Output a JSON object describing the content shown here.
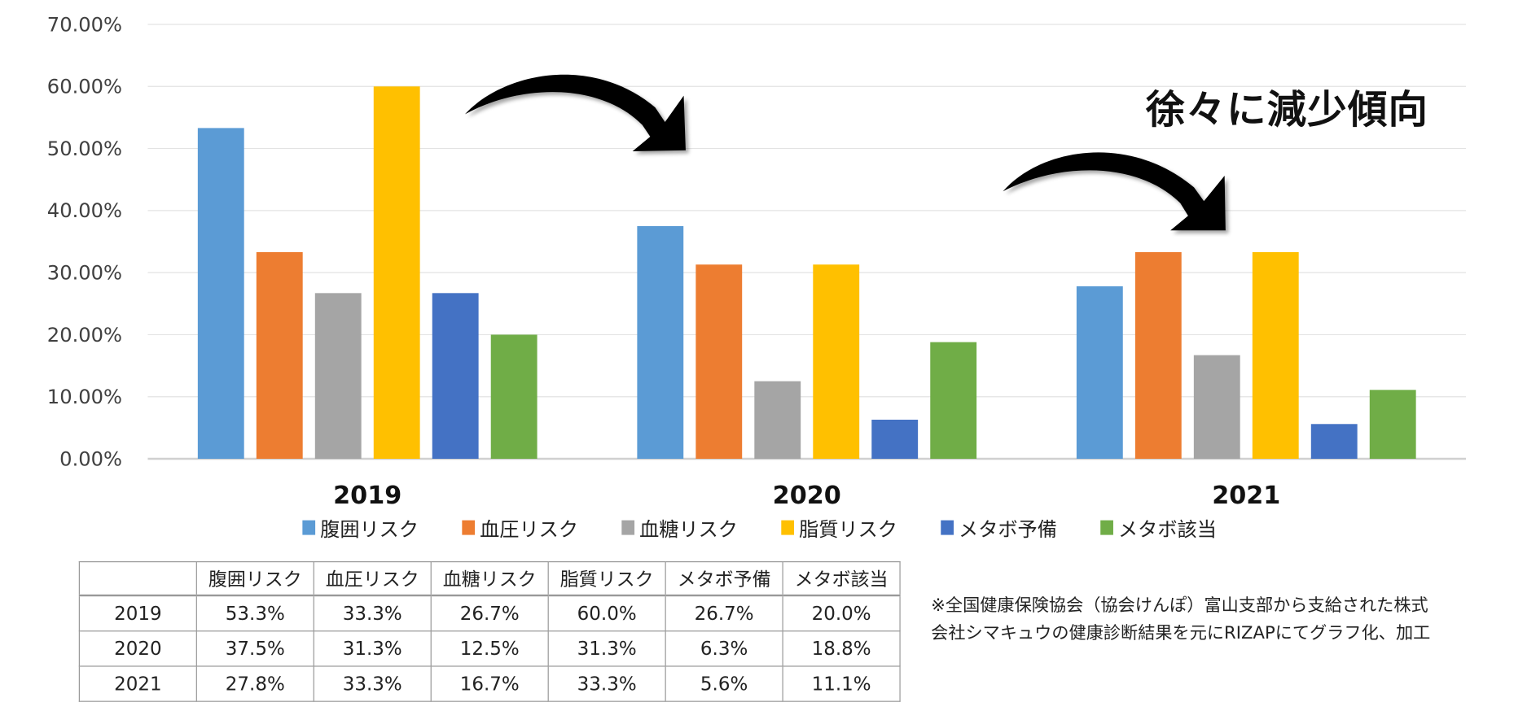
{
  "chart_data": {
    "type": "bar",
    "categories": [
      "2019",
      "2020",
      "2021"
    ],
    "series": [
      {
        "name": "腹囲リスク",
        "color": "#5B9BD5",
        "values": [
          53.3,
          37.5,
          27.8
        ]
      },
      {
        "name": "血圧リスク",
        "color": "#ED7D31",
        "values": [
          33.3,
          31.3,
          33.3
        ]
      },
      {
        "name": "血糖リスク",
        "color": "#A5A5A5",
        "values": [
          26.7,
          12.5,
          16.7
        ]
      },
      {
        "name": "脂質リスク",
        "color": "#FFC000",
        "values": [
          60.0,
          31.3,
          33.3
        ]
      },
      {
        "name": "メタボ予備",
        "color": "#4472C4",
        "values": [
          26.7,
          6.3,
          5.6
        ]
      },
      {
        "name": "メタボ該当",
        "color": "#70AD47",
        "values": [
          20.0,
          18.8,
          11.1
        ]
      }
    ],
    "yticks": [
      "0.00%",
      "10.00%",
      "20.00%",
      "30.00%",
      "40.00%",
      "50.00%",
      "60.00%",
      "70.00%"
    ],
    "ylim": [
      0,
      70
    ],
    "grid": true,
    "legend": "bottom",
    "annotation": "徐々に減少傾向"
  },
  "table": {
    "headers": [
      "",
      "腹囲リスク",
      "血圧リスク",
      "血糖リスク",
      "脂質リスク",
      "メタボ予備",
      "メタボ該当"
    ],
    "rows": [
      [
        "2019",
        "53.3%",
        "33.3%",
        "26.7%",
        "60.0%",
        "26.7%",
        "20.0%"
      ],
      [
        "2020",
        "37.5%",
        "31.3%",
        "12.5%",
        "31.3%",
        "6.3%",
        "18.8%"
      ],
      [
        "2021",
        "27.8%",
        "33.3%",
        "16.7%",
        "33.3%",
        "5.6%",
        "11.1%"
      ]
    ]
  },
  "footnote": {
    "line1": "※全国健康保険協会（協会けんぽ）富山支部から支給された株式",
    "line2": "会社シマキュウの健康診断結果を元にRIZAPにてグラフ化、加工"
  }
}
